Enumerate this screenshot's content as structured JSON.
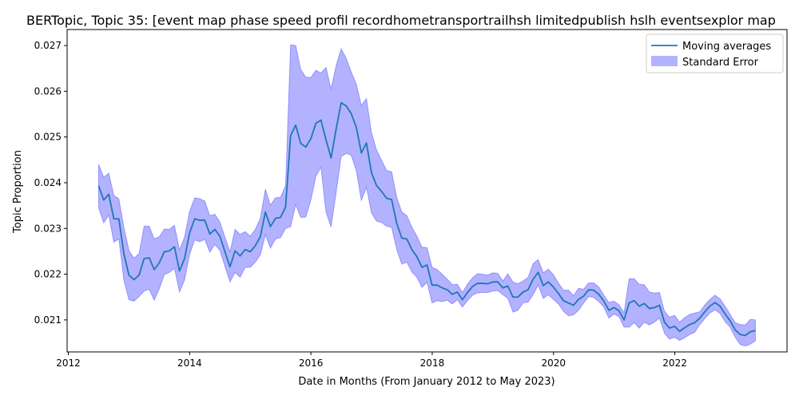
{
  "chart_data": {
    "type": "line",
    "title": "BERTopic, Topic 35: [event map phase speed profil recordhometransportrailhsh limitedpublish hslh eventsexplor map",
    "xlabel": "Date in Months (From January 2012 to May 2023)",
    "ylabel": "Topic Proportion",
    "xlim": [
      2011.98,
      2023.85
    ],
    "ylim": [
      0.0203,
      0.02735
    ],
    "x_ticks": [
      2012,
      2014,
      2016,
      2018,
      2020,
      2022
    ],
    "y_ticks": [
      0.021,
      0.022,
      0.023,
      0.024,
      0.025,
      0.026,
      0.027
    ],
    "y_tick_labels": [
      "0.021",
      "0.022",
      "0.023",
      "0.024",
      "0.025",
      "0.026",
      "0.027"
    ],
    "grid": false,
    "legend_position": "top-right",
    "colors": {
      "line": "#1f77b4",
      "band": "#0000ff",
      "band_opacity": 0.3
    },
    "x_start_year": 2012.5,
    "x_step_years": 0.0833,
    "series": [
      {
        "name": "Moving averages",
        "values": [
          0.02393,
          0.02362,
          0.02375,
          0.02321,
          0.02321,
          0.02244,
          0.02198,
          0.02188,
          0.02198,
          0.02234,
          0.02236,
          0.0221,
          0.02225,
          0.02249,
          0.02251,
          0.0226,
          0.02207,
          0.02234,
          0.0229,
          0.02321,
          0.02318,
          0.02318,
          0.02288,
          0.02298,
          0.02283,
          0.02249,
          0.02216,
          0.02251,
          0.0224,
          0.02254,
          0.02249,
          0.02262,
          0.02282,
          0.02336,
          0.02304,
          0.02322,
          0.02324,
          0.02347,
          0.02503,
          0.02526,
          0.02486,
          0.02478,
          0.02496,
          0.0253,
          0.02537,
          0.02494,
          0.02454,
          0.02517,
          0.02575,
          0.02568,
          0.02551,
          0.02521,
          0.02465,
          0.02487,
          0.02422,
          0.02394,
          0.02381,
          0.02366,
          0.02363,
          0.02311,
          0.02279,
          0.02277,
          0.02254,
          0.02238,
          0.02215,
          0.0222,
          0.02176,
          0.02176,
          0.0217,
          0.02166,
          0.02156,
          0.02161,
          0.02144,
          0.0216,
          0.02173,
          0.0218,
          0.0218,
          0.02179,
          0.02183,
          0.02183,
          0.0217,
          0.02174,
          0.0215,
          0.0215,
          0.02161,
          0.02166,
          0.02189,
          0.02204,
          0.02175,
          0.02183,
          0.02172,
          0.02158,
          0.02142,
          0.02137,
          0.02132,
          0.02145,
          0.02152,
          0.02166,
          0.02165,
          0.02156,
          0.02141,
          0.02121,
          0.02127,
          0.0212,
          0.021,
          0.02137,
          0.02142,
          0.0213,
          0.02136,
          0.02125,
          0.02127,
          0.02132,
          0.02095,
          0.02082,
          0.02086,
          0.02075,
          0.02083,
          0.0209,
          0.02094,
          0.02104,
          0.02118,
          0.0213,
          0.02138,
          0.0213,
          0.02113,
          0.02098,
          0.02078,
          0.02068,
          0.02066,
          0.02074,
          0.02077
        ]
      },
      {
        "name": "Standard Error",
        "upper": [
          0.0244,
          0.02412,
          0.02421,
          0.02372,
          0.02365,
          0.02302,
          0.02252,
          0.02235,
          0.02245,
          0.02305,
          0.02305,
          0.02277,
          0.02282,
          0.02299,
          0.02298,
          0.02307,
          0.02253,
          0.02281,
          0.02337,
          0.02367,
          0.02365,
          0.0236,
          0.02328,
          0.02331,
          0.02314,
          0.02281,
          0.02249,
          0.02298,
          0.02287,
          0.02293,
          0.02283,
          0.02298,
          0.02322,
          0.02386,
          0.02351,
          0.02367,
          0.02368,
          0.02394,
          0.02702,
          0.027,
          0.02648,
          0.02631,
          0.0263,
          0.02646,
          0.0264,
          0.02652,
          0.02605,
          0.02656,
          0.02693,
          0.02672,
          0.02642,
          0.02616,
          0.02569,
          0.02584,
          0.0251,
          0.02472,
          0.02449,
          0.02427,
          0.02424,
          0.02368,
          0.02336,
          0.02328,
          0.02303,
          0.02283,
          0.02259,
          0.02258,
          0.02215,
          0.0221,
          0.022,
          0.02189,
          0.02177,
          0.02178,
          0.0216,
          0.02178,
          0.02192,
          0.02201,
          0.022,
          0.02198,
          0.02203,
          0.02202,
          0.02185,
          0.02201,
          0.02183,
          0.02179,
          0.02185,
          0.02193,
          0.02223,
          0.02232,
          0.02203,
          0.02211,
          0.02199,
          0.02181,
          0.02165,
          0.02165,
          0.02153,
          0.02169,
          0.02167,
          0.02181,
          0.02181,
          0.02172,
          0.02154,
          0.02138,
          0.02141,
          0.02133,
          0.02116,
          0.0219,
          0.0219,
          0.02178,
          0.02177,
          0.02161,
          0.02159,
          0.0216,
          0.02119,
          0.02106,
          0.0211,
          0.02095,
          0.02105,
          0.02112,
          0.02115,
          0.02118,
          0.02133,
          0.02145,
          0.02154,
          0.02146,
          0.0213,
          0.02112,
          0.02094,
          0.0209,
          0.02089,
          0.02101,
          0.021
        ],
        "lower": [
          0.02345,
          0.02312,
          0.02329,
          0.0227,
          0.02277,
          0.02186,
          0.02144,
          0.02141,
          0.02151,
          0.02163,
          0.02167,
          0.02143,
          0.02168,
          0.02199,
          0.02204,
          0.02213,
          0.02161,
          0.02187,
          0.02243,
          0.02275,
          0.02271,
          0.02276,
          0.02248,
          0.02265,
          0.02252,
          0.02217,
          0.02183,
          0.02204,
          0.02193,
          0.02215,
          0.02215,
          0.02226,
          0.02242,
          0.02286,
          0.02257,
          0.02277,
          0.0228,
          0.023,
          0.02304,
          0.02352,
          0.02324,
          0.02325,
          0.02362,
          0.02414,
          0.02434,
          0.02336,
          0.02303,
          0.02378,
          0.02457,
          0.02464,
          0.0246,
          0.02426,
          0.02361,
          0.0239,
          0.02334,
          0.02316,
          0.02313,
          0.02305,
          0.02302,
          0.02254,
          0.02222,
          0.02226,
          0.02205,
          0.02193,
          0.02171,
          0.02182,
          0.02137,
          0.02142,
          0.0214,
          0.02143,
          0.02135,
          0.02144,
          0.02128,
          0.02142,
          0.02154,
          0.02159,
          0.0216,
          0.0216,
          0.02163,
          0.02164,
          0.02155,
          0.02147,
          0.02117,
          0.02121,
          0.02137,
          0.02139,
          0.02155,
          0.02176,
          0.02147,
          0.02155,
          0.02145,
          0.02135,
          0.02119,
          0.02109,
          0.02111,
          0.02121,
          0.02137,
          0.02151,
          0.02149,
          0.0214,
          0.02128,
          0.02104,
          0.02113,
          0.02107,
          0.02084,
          0.02084,
          0.02094,
          0.02082,
          0.02095,
          0.02089,
          0.02095,
          0.02104,
          0.02071,
          0.02058,
          0.02062,
          0.02055,
          0.02061,
          0.02068,
          0.02073,
          0.0209,
          0.02103,
          0.02115,
          0.02122,
          0.02114,
          0.02096,
          0.02084,
          0.02062,
          0.02046,
          0.02043,
          0.02047,
          0.02054
        ]
      }
    ]
  }
}
